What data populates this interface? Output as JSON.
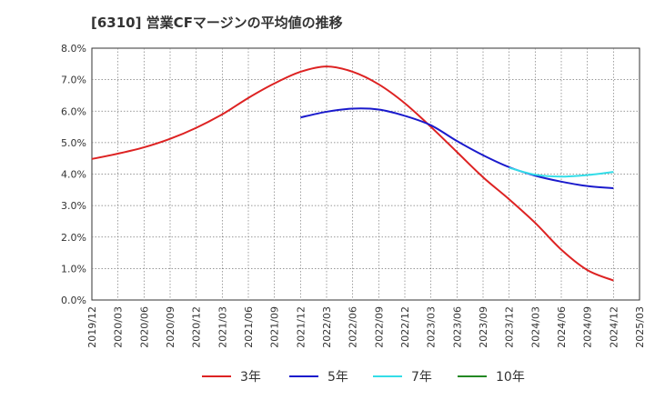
{
  "title": "[6310]  営業CFマージンの平均値の推移",
  "chart_data": {
    "type": "line",
    "title": "[6310]  営業CFマージンの平均値の推移",
    "xlabel": "",
    "ylabel": "",
    "x_ticks": [
      "2019/12",
      "2020/03",
      "2020/06",
      "2020/09",
      "2020/12",
      "2021/03",
      "2021/06",
      "2021/09",
      "2021/12",
      "2022/03",
      "2022/06",
      "2022/09",
      "2022/12",
      "2023/03",
      "2023/06",
      "2023/09",
      "2023/12",
      "2024/03",
      "2024/06",
      "2024/09",
      "2024/12",
      "2025/03"
    ],
    "y_ticks": [
      "0.0%",
      "1.0%",
      "2.0%",
      "3.0%",
      "4.0%",
      "5.0%",
      "6.0%",
      "7.0%",
      "8.0%"
    ],
    "ylim": [
      0,
      8
    ],
    "grid": true,
    "legend_position": "bottom",
    "series": [
      {
        "name": "3年",
        "color": "#dd2222",
        "x": [
          "2019/12",
          "2020/03",
          "2020/06",
          "2020/09",
          "2020/12",
          "2021/03",
          "2021/06",
          "2021/09",
          "2021/12",
          "2022/03",
          "2022/06",
          "2022/09",
          "2022/12",
          "2023/03",
          "2023/06",
          "2023/09",
          "2023/12",
          "2024/03",
          "2024/06",
          "2024/09",
          "2024/12"
        ],
        "values": [
          4.48,
          4.65,
          4.85,
          5.12,
          5.47,
          5.9,
          6.42,
          6.88,
          7.25,
          7.42,
          7.25,
          6.85,
          6.25,
          5.5,
          4.7,
          3.9,
          3.2,
          2.45,
          1.6,
          0.95,
          0.62
        ]
      },
      {
        "name": "5年",
        "color": "#1a1acc",
        "x": [
          "2021/12",
          "2022/03",
          "2022/06",
          "2022/09",
          "2022/12",
          "2023/03",
          "2023/06",
          "2023/09",
          "2023/12",
          "2024/03",
          "2024/06",
          "2024/09",
          "2024/12"
        ],
        "values": [
          5.8,
          5.98,
          6.08,
          6.05,
          5.85,
          5.55,
          5.05,
          4.6,
          4.22,
          3.95,
          3.76,
          3.62,
          3.55
        ]
      },
      {
        "name": "7年",
        "color": "#33dde8",
        "x": [
          "2023/12",
          "2024/03",
          "2024/06",
          "2024/09",
          "2024/12"
        ],
        "values": [
          4.2,
          3.98,
          3.92,
          3.97,
          4.07
        ]
      },
      {
        "name": "10年",
        "color": "#228822",
        "x": [],
        "values": []
      }
    ]
  }
}
